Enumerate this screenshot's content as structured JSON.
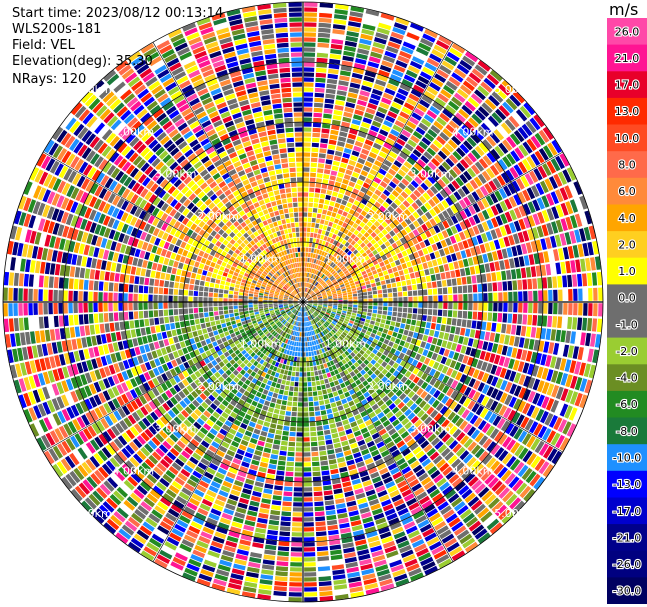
{
  "meta": {
    "start_time": "Start time: 2023/08/12 00:13:14",
    "instrument": "WLS200s-181",
    "field": "Field: VEL",
    "elevation": "Elevation(deg): 35.30",
    "nrays": "NRays: 120"
  },
  "chart_data": {
    "type": "heatmap",
    "projection": "polar-ppi",
    "title": "",
    "field": "VEL",
    "units": "m/s",
    "n_rays": 120,
    "n_gates": 60,
    "max_range_km": 5.0,
    "range_rings_km": [
      1.0,
      2.0,
      3.0,
      4.0,
      5.0
    ],
    "range_ring_labels": [
      "1.00km",
      "2.00km",
      "3.00km",
      "4.00km",
      "5.00km"
    ],
    "colorbar": {
      "label": "m/s",
      "ticks": [
        "26.0",
        "21.0",
        "17.0",
        "13.0",
        "10.0",
        "8.0",
        "6.0",
        "4.0",
        "2.0",
        "1.0",
        "0.0",
        "-1.0",
        "-2.0",
        "-4.0",
        "-6.0",
        "-8.0",
        "-10.0",
        "-13.0",
        "-17.0",
        "-21.0",
        "-26.0",
        "-30.0"
      ],
      "colors": [
        "#ff48a8",
        "#ff1493",
        "#e8002a",
        "#ff2a00",
        "#ff4a22",
        "#ff6a4a",
        "#ff8a3a",
        "#ffa500",
        "#ffcf20",
        "#ffff00",
        "#6e6e6e",
        "#6e6e6e",
        "#9acd32",
        "#6b8e23",
        "#228b22",
        "#1a7a3a",
        "#1e90ff",
        "#0000ff",
        "#0000cd",
        "#00008b",
        "#000080",
        "#000060"
      ]
    },
    "pattern": "Northern half receding (+2 to +8 m/s, yellow/orange), southern half approaching (-1 to -8 m/s, green/blue); beyond ~2.5km mostly noise/speckle"
  }
}
